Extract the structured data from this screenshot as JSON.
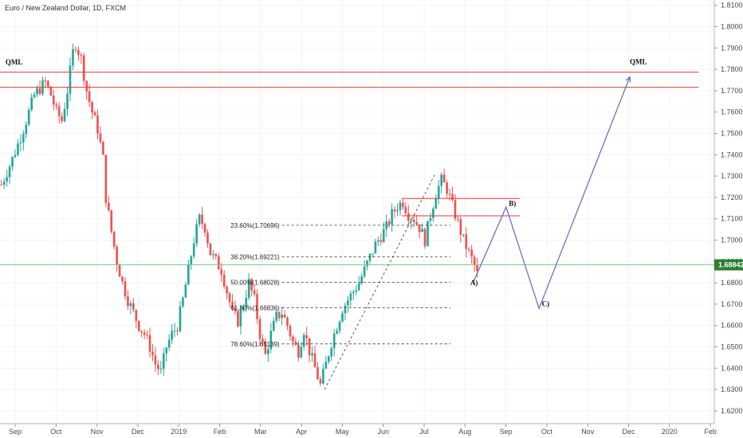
{
  "chart_data": {
    "type": "candlestick",
    "title": "Euro / New Zealand Dollar, 1D, FXCM",
    "ylim": [
      1.614,
      1.8125
    ],
    "y_ticks": [
      "1.81000",
      "1.80000",
      "1.79000",
      "1.78000",
      "1.77000",
      "1.76000",
      "1.75000",
      "1.74000",
      "1.73000",
      "1.72000",
      "1.71000",
      "1.70000",
      "1.69000",
      "1.68000",
      "1.67000",
      "1.66000",
      "1.65000",
      "1.64000",
      "1.63000",
      "1.62000"
    ],
    "x_labels": [
      "Sep",
      "Oct",
      "Nov",
      "Dec",
      "2019",
      "Feb",
      "Mar",
      "Apr",
      "May",
      "Jun",
      "Jul",
      "Aug",
      "Sep",
      "Oct",
      "Nov",
      "Dec",
      "2020",
      "Feb"
    ],
    "last_price": {
      "label": "1.68842",
      "value": 1.68842,
      "color": "#2e7d32"
    },
    "price_path": [
      [
        0,
        1.726
      ],
      [
        4,
        1.738
      ],
      [
        8,
        1.752
      ],
      [
        12,
        1.768
      ],
      [
        16,
        1.774
      ],
      [
        18,
        1.768
      ],
      [
        20,
        1.76
      ],
      [
        22,
        1.756
      ],
      [
        24,
        1.77
      ],
      [
        26,
        1.788
      ],
      [
        27,
        1.792
      ],
      [
        29,
        1.785
      ],
      [
        31,
        1.77
      ],
      [
        33,
        1.76
      ],
      [
        35,
        1.752
      ],
      [
        37,
        1.738
      ],
      [
        38,
        1.72
      ],
      [
        40,
        1.704
      ],
      [
        42,
        1.69
      ],
      [
        44,
        1.68
      ],
      [
        46,
        1.672
      ],
      [
        48,
        1.666
      ],
      [
        50,
        1.66
      ],
      [
        52,
        1.656
      ],
      [
        54,
        1.65
      ],
      [
        56,
        1.642
      ],
      [
        58,
        1.638
      ],
      [
        60,
        1.65
      ],
      [
        62,
        1.656
      ],
      [
        64,
        1.66
      ],
      [
        66,
        1.672
      ],
      [
        68,
        1.686
      ],
      [
        70,
        1.7
      ],
      [
        72,
        1.71
      ],
      [
        74,
        1.706
      ],
      [
        76,
        1.694
      ],
      [
        78,
        1.69
      ],
      [
        80,
        1.686
      ],
      [
        82,
        1.676
      ],
      [
        84,
        1.666
      ],
      [
        86,
        1.662
      ],
      [
        88,
        1.67
      ],
      [
        90,
        1.68
      ],
      [
        92,
        1.672
      ],
      [
        94,
        1.656
      ],
      [
        96,
        1.646
      ],
      [
        98,
        1.656
      ],
      [
        100,
        1.664
      ],
      [
        102,
        1.666
      ],
      [
        104,
        1.66
      ],
      [
        106,
        1.652
      ],
      [
        108,
        1.648
      ],
      [
        110,
        1.658
      ],
      [
        112,
        1.648
      ],
      [
        114,
        1.64
      ],
      [
        116,
        1.632
      ],
      [
        118,
        1.642
      ],
      [
        120,
        1.652
      ],
      [
        122,
        1.66
      ],
      [
        124,
        1.668
      ],
      [
        126,
        1.672
      ],
      [
        128,
        1.676
      ],
      [
        130,
        1.68
      ],
      [
        132,
        1.686
      ],
      [
        134,
        1.692
      ],
      [
        136,
        1.698
      ],
      [
        138,
        1.702
      ],
      [
        140,
        1.706
      ],
      [
        142,
        1.712
      ],
      [
        144,
        1.716
      ],
      [
        146,
        1.718
      ],
      [
        148,
        1.712
      ],
      [
        150,
        1.71
      ],
      [
        152,
        1.706
      ],
      [
        154,
        1.7
      ],
      [
        156,
        1.712
      ],
      [
        158,
        1.722
      ],
      [
        160,
        1.728
      ],
      [
        162,
        1.724
      ],
      [
        164,
        1.716
      ],
      [
        166,
        1.708
      ],
      [
        168,
        1.7
      ],
      [
        170,
        1.694
      ],
      [
        172,
        1.688
      ],
      [
        173,
        1.684
      ]
    ],
    "hlines": [
      {
        "name": "qml-line-1",
        "value": 1.7787,
        "t_start": 0,
        "t_end": 254,
        "color": "#e53935"
      },
      {
        "name": "qml-line-2",
        "value": 1.7716,
        "t_start": 0,
        "t_end": 254,
        "color": "#e53935"
      },
      {
        "name": "zone-line-1",
        "value": 1.7195,
        "t_start": 146,
        "t_end": 189,
        "color": "#e53935"
      },
      {
        "name": "zone-line-2",
        "value": 1.7114,
        "t_start": 146,
        "t_end": 189,
        "color": "#e53935"
      }
    ],
    "fib_levels": [
      {
        "label": "23.60%(1.70696)",
        "value": 1.70696
      },
      {
        "label": "38.20%(1.69221)",
        "value": 1.69221
      },
      {
        "label": "50.00%(1.68028)",
        "value": 1.68028
      },
      {
        "label": "61.80%(1.66836)",
        "value": 1.66836
      },
      {
        "label": "78.60%(1.65139)",
        "value": 1.65139
      }
    ],
    "fib_trendline": {
      "t1": 118,
      "v1": 1.63,
      "t2": 158,
      "v2": 1.7305
    },
    "fib_t_start": 106,
    "fib_t_end": 158,
    "projection": [
      {
        "t": 172,
        "v": 1.68
      },
      {
        "t": 184,
        "v": 1.7155
      },
      {
        "t": 196,
        "v": 1.668
      },
      {
        "t": 229,
        "v": 1.7765
      }
    ],
    "wave_labels": [
      {
        "text": "A)",
        "t": 171,
        "v": 1.679
      },
      {
        "text": "B)",
        "t": 185,
        "v": 1.716
      },
      {
        "text": "C)",
        "t": 197,
        "v": 1.669
      },
      {
        "text": "QML",
        "t": 229,
        "v": 1.7825
      },
      {
        "text": "QML",
        "t": 2,
        "v": 1.7822
      }
    ]
  }
}
